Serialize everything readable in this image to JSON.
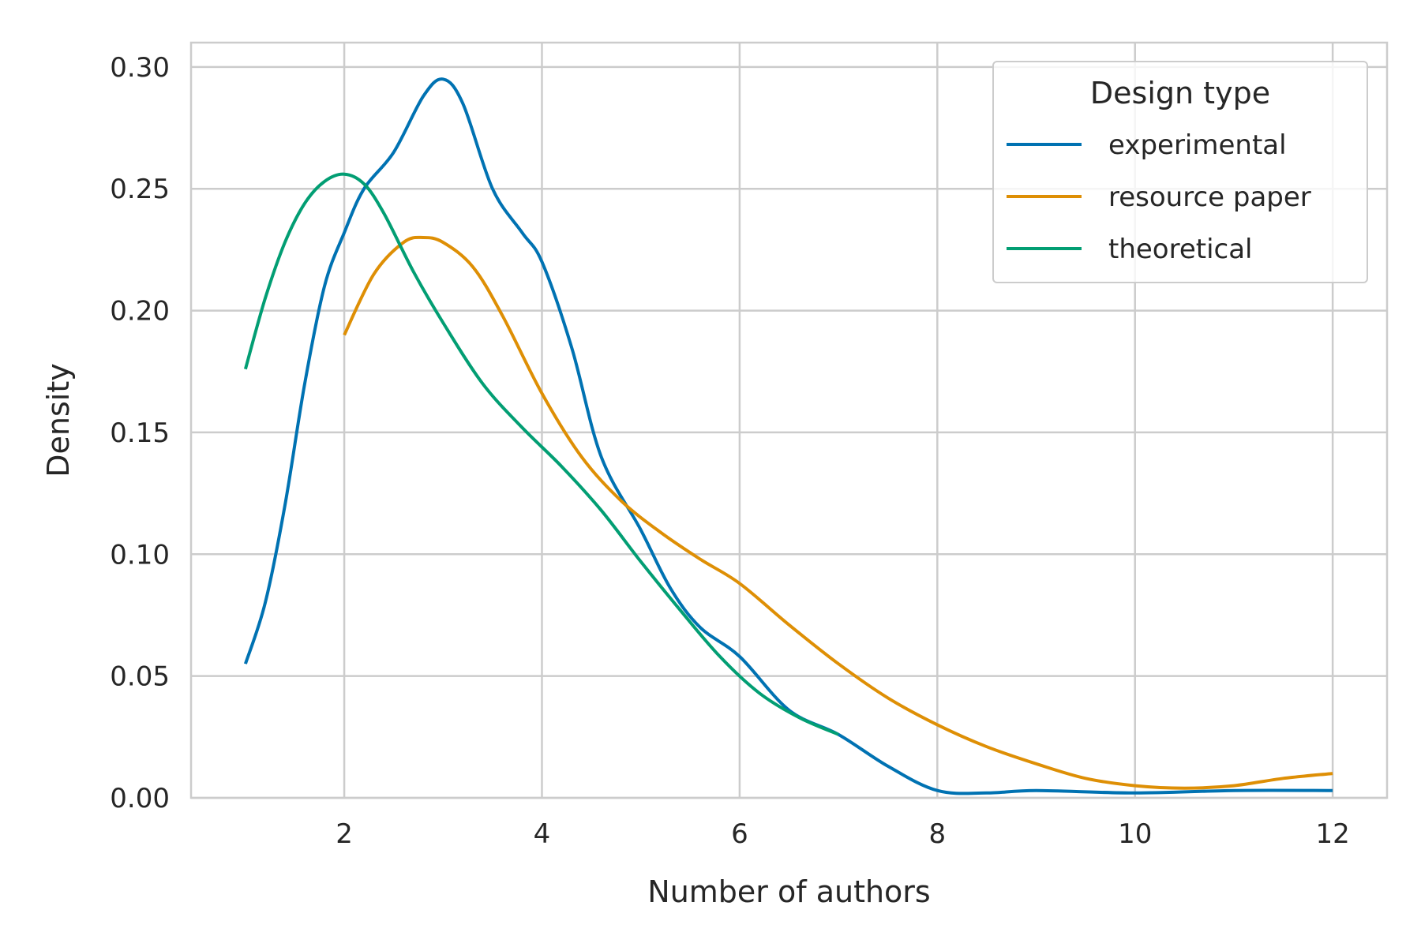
{
  "chart_data": {
    "type": "line",
    "title": "",
    "xlabel": "Number of authors",
    "ylabel": "Density",
    "xlim": [
      0.45,
      12.55
    ],
    "ylim": [
      0,
      0.31
    ],
    "xticks": [
      2,
      4,
      6,
      8,
      10,
      12
    ],
    "yticks": [
      0.0,
      0.05,
      0.1,
      0.15,
      0.2,
      0.25,
      0.3
    ],
    "grid": true,
    "legend": {
      "title": "Design type",
      "placement": "top-right"
    },
    "series": [
      {
        "name": "experimental",
        "color": "#0072b2",
        "points": [
          [
            1,
            0.055
          ],
          [
            1.2,
            0.08
          ],
          [
            1.4,
            0.12
          ],
          [
            1.6,
            0.17
          ],
          [
            1.8,
            0.21
          ],
          [
            2,
            0.232
          ],
          [
            2.2,
            0.25
          ],
          [
            2.5,
            0.265
          ],
          [
            2.8,
            0.288
          ],
          [
            3,
            0.295
          ],
          [
            3.2,
            0.285
          ],
          [
            3.5,
            0.25
          ],
          [
            3.8,
            0.232
          ],
          [
            4,
            0.22
          ],
          [
            4.3,
            0.185
          ],
          [
            4.6,
            0.14
          ],
          [
            5,
            0.11
          ],
          [
            5.3,
            0.086
          ],
          [
            5.6,
            0.07
          ],
          [
            6,
            0.058
          ],
          [
            6.5,
            0.036
          ],
          [
            7,
            0.026
          ],
          [
            7.5,
            0.013
          ],
          [
            8,
            0.003
          ],
          [
            8.5,
            0.002
          ],
          [
            9,
            0.003
          ],
          [
            10,
            0.002
          ],
          [
            11,
            0.003
          ],
          [
            12,
            0.003
          ]
        ]
      },
      {
        "name": "resource paper",
        "color": "#de8f05",
        "points": [
          [
            2,
            0.19
          ],
          [
            2.3,
            0.215
          ],
          [
            2.6,
            0.228
          ],
          [
            2.8,
            0.23
          ],
          [
            3,
            0.228
          ],
          [
            3.3,
            0.218
          ],
          [
            3.6,
            0.198
          ],
          [
            4,
            0.166
          ],
          [
            4.4,
            0.14
          ],
          [
            4.8,
            0.122
          ],
          [
            5.2,
            0.109
          ],
          [
            5.6,
            0.098
          ],
          [
            6,
            0.088
          ],
          [
            6.5,
            0.071
          ],
          [
            7,
            0.055
          ],
          [
            7.5,
            0.041
          ],
          [
            8,
            0.03
          ],
          [
            8.5,
            0.021
          ],
          [
            9,
            0.014
          ],
          [
            9.5,
            0.008
          ],
          [
            10,
            0.005
          ],
          [
            10.5,
            0.004
          ],
          [
            11,
            0.005
          ],
          [
            11.5,
            0.008
          ],
          [
            12,
            0.01
          ]
        ]
      },
      {
        "name": "theoretical",
        "color": "#029e73",
        "points": [
          [
            1,
            0.176
          ],
          [
            1.2,
            0.205
          ],
          [
            1.4,
            0.228
          ],
          [
            1.6,
            0.244
          ],
          [
            1.8,
            0.253
          ],
          [
            2,
            0.256
          ],
          [
            2.2,
            0.252
          ],
          [
            2.4,
            0.24
          ],
          [
            2.7,
            0.216
          ],
          [
            3,
            0.195
          ],
          [
            3.4,
            0.17
          ],
          [
            3.8,
            0.152
          ],
          [
            4.2,
            0.136
          ],
          [
            4.6,
            0.118
          ],
          [
            5,
            0.097
          ],
          [
            5.4,
            0.077
          ],
          [
            5.8,
            0.058
          ],
          [
            6.2,
            0.043
          ],
          [
            6.6,
            0.033
          ],
          [
            7,
            0.026
          ]
        ]
      }
    ]
  }
}
